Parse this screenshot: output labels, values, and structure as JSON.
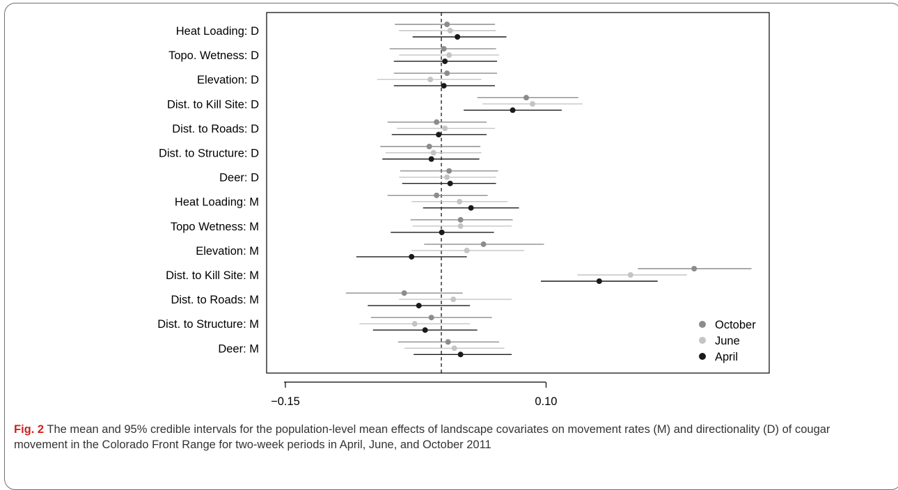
{
  "chart_data": {
    "type": "scatter",
    "subtype": "dot-and-interval (forest) plot",
    "title": "",
    "xlabel": "",
    "ylabel": "",
    "xticks": [
      -0.15,
      0.1
    ],
    "xtick_labels": [
      "−0.15",
      "0.10"
    ],
    "xlim": [
      -0.168,
      0.314
    ],
    "reference_line": {
      "x": 0,
      "style": "dashed"
    },
    "grid": false,
    "legend": {
      "position": "bottom-right"
    },
    "categories": [
      "Heat Loading: D",
      "Topo. Wetness: D",
      "Elevation: D",
      "Dist. to Kill Site: D",
      "Dist. to Roads: D",
      "Dist. to Structure: D",
      "Deer: D",
      "Heat Loading: M",
      "Topo Wetness: M",
      "Elevation: M",
      "Dist. to Kill Site: M",
      "Dist. to Roads: M",
      "Dist. to Structure: M",
      "Deer: M"
    ],
    "series": [
      {
        "name": "October",
        "color": "#8c8c8c",
        "points": [
          {
            "mean": 0.005,
            "lo": -0.045,
            "hi": 0.051
          },
          {
            "mean": 0.002,
            "lo": -0.05,
            "hi": 0.052
          },
          {
            "mean": 0.005,
            "lo": -0.046,
            "hi": 0.053
          },
          {
            "mean": 0.081,
            "lo": 0.034,
            "hi": 0.131
          },
          {
            "mean": -0.005,
            "lo": -0.052,
            "hi": 0.043
          },
          {
            "mean": -0.012,
            "lo": -0.059,
            "hi": 0.037
          },
          {
            "mean": 0.007,
            "lo": -0.04,
            "hi": 0.054
          },
          {
            "mean": -0.005,
            "lo": -0.052,
            "hi": 0.044
          },
          {
            "mean": 0.018,
            "lo": -0.03,
            "hi": 0.068
          },
          {
            "mean": 0.04,
            "lo": -0.017,
            "hi": 0.098
          },
          {
            "mean": 0.242,
            "lo": 0.188,
            "hi": 0.297
          },
          {
            "mean": -0.036,
            "lo": -0.092,
            "hi": 0.02
          },
          {
            "mean": -0.01,
            "lo": -0.068,
            "hi": 0.048
          },
          {
            "mean": 0.006,
            "lo": -0.042,
            "hi": 0.055
          }
        ]
      },
      {
        "name": "June",
        "color": "#c4c4c4",
        "points": [
          {
            "mean": 0.008,
            "lo": -0.041,
            "hi": 0.052
          },
          {
            "mean": 0.007,
            "lo": -0.041,
            "hi": 0.055
          },
          {
            "mean": -0.011,
            "lo": -0.062,
            "hi": 0.038
          },
          {
            "mean": 0.087,
            "lo": 0.039,
            "hi": 0.135
          },
          {
            "mean": 0.003,
            "lo": -0.043,
            "hi": 0.051
          },
          {
            "mean": -0.008,
            "lo": -0.054,
            "hi": 0.038
          },
          {
            "mean": 0.005,
            "lo": -0.041,
            "hi": 0.052
          },
          {
            "mean": 0.017,
            "lo": -0.029,
            "hi": 0.063
          },
          {
            "mean": 0.018,
            "lo": -0.028,
            "hi": 0.067
          },
          {
            "mean": 0.024,
            "lo": -0.029,
            "hi": 0.079
          },
          {
            "mean": 0.181,
            "lo": 0.13,
            "hi": 0.235
          },
          {
            "mean": 0.011,
            "lo": -0.041,
            "hi": 0.067
          },
          {
            "mean": -0.026,
            "lo": -0.079,
            "hi": 0.027
          },
          {
            "mean": 0.012,
            "lo": -0.036,
            "hi": 0.06
          }
        ]
      },
      {
        "name": "April",
        "color": "#1a1a1a",
        "points": [
          {
            "mean": 0.015,
            "lo": -0.028,
            "hi": 0.062
          },
          {
            "mean": 0.003,
            "lo": -0.046,
            "hi": 0.053
          },
          {
            "mean": 0.002,
            "lo": -0.046,
            "hi": 0.051
          },
          {
            "mean": 0.068,
            "lo": 0.021,
            "hi": 0.115
          },
          {
            "mean": -0.003,
            "lo": -0.048,
            "hi": 0.043
          },
          {
            "mean": -0.01,
            "lo": -0.057,
            "hi": 0.036
          },
          {
            "mean": 0.008,
            "lo": -0.038,
            "hi": 0.052
          },
          {
            "mean": 0.028,
            "lo": -0.018,
            "hi": 0.074
          },
          {
            "mean": 0.0,
            "lo": -0.049,
            "hi": 0.05
          },
          {
            "mean": -0.029,
            "lo": -0.082,
            "hi": 0.024
          },
          {
            "mean": 0.151,
            "lo": 0.095,
            "hi": 0.207
          },
          {
            "mean": -0.022,
            "lo": -0.071,
            "hi": 0.027
          },
          {
            "mean": -0.016,
            "lo": -0.066,
            "hi": 0.034
          },
          {
            "mean": 0.018,
            "lo": -0.027,
            "hi": 0.067
          }
        ]
      }
    ]
  },
  "caption": {
    "label": "Fig. 2",
    "text": "The mean and 95% credible intervals for the population-level mean effects of landscape covariates on movement rates (M) and directionality (D) of cougar movement in the Colorado Front Range for two-week periods in April, June, and October 2011"
  }
}
